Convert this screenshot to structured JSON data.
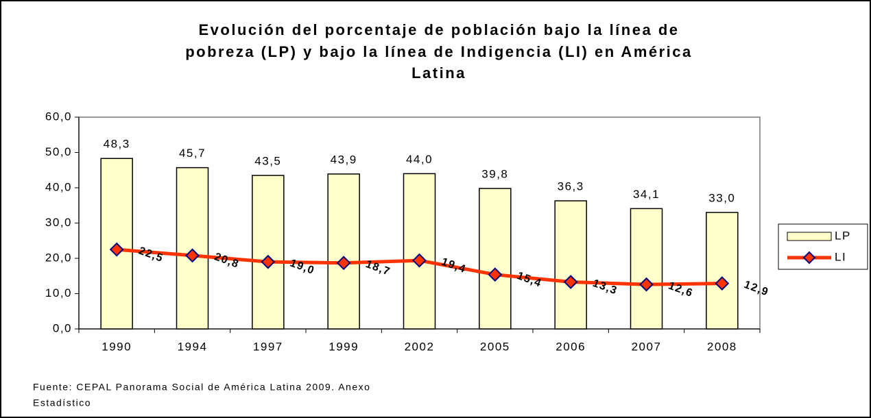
{
  "chart_data": {
    "type": "bar",
    "title": [
      "Evolución del porcentaje de población bajo la línea de",
      "pobreza (LP)  y bajo la línea de Indigencia (LI) en América",
      "Latina"
    ],
    "source": [
      "Fuente: CEPAL Panorama Social de América Latina 2009. Anexo",
      "Estadístico"
    ],
    "categories": [
      "1990",
      "1994",
      "1997",
      "1999",
      "2002",
      "2005",
      "2006",
      "2007",
      "2008"
    ],
    "series": [
      {
        "name": "LP",
        "type": "bar",
        "color": "#ffffcc",
        "values": [
          48.3,
          45.7,
          43.5,
          43.9,
          44.0,
          39.8,
          36.3,
          34.1,
          33.0
        ],
        "value_labels": [
          "48,3",
          "45,7",
          "43,5",
          "43,9",
          "44,0",
          "39,8",
          "36,3",
          "34,1",
          "33,0"
        ]
      },
      {
        "name": "LI",
        "type": "line",
        "color": "#ff3300",
        "marker_color": "#000080",
        "values": [
          22.5,
          20.8,
          19.0,
          18.7,
          19.4,
          15.4,
          13.3,
          12.6,
          12.9
        ],
        "value_labels": [
          "22,5",
          "20,8",
          "19,0",
          "18,7",
          "19,4",
          "15,4",
          "13,3",
          "12,6",
          "12,9"
        ]
      }
    ],
    "ylim": [
      0,
      60
    ],
    "yticks": [
      {
        "value": 0,
        "label": "0,0"
      },
      {
        "value": 10,
        "label": "10,0"
      },
      {
        "value": 20,
        "label": "20,0"
      },
      {
        "value": 30,
        "label": "30,0"
      },
      {
        "value": 40,
        "label": "40,0"
      },
      {
        "value": 50,
        "label": "50,0"
      },
      {
        "value": 60,
        "label": "60,0"
      }
    ],
    "legend": "right"
  }
}
